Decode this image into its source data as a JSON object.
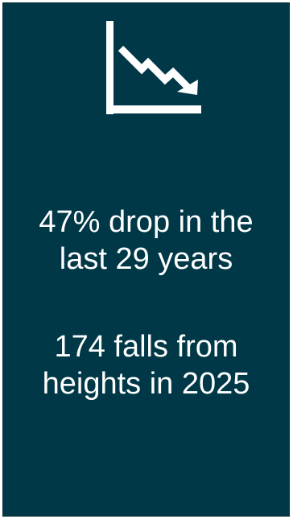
{
  "card": {
    "background": "#003847",
    "text_color": "#ffffff",
    "icon": "declining-chart-icon"
  },
  "stats": [
    {
      "lines": [
        "47% drop in the",
        "last 29 years"
      ]
    },
    {
      "lines": [
        "174 falls from",
        "heights in 2025"
      ]
    }
  ]
}
